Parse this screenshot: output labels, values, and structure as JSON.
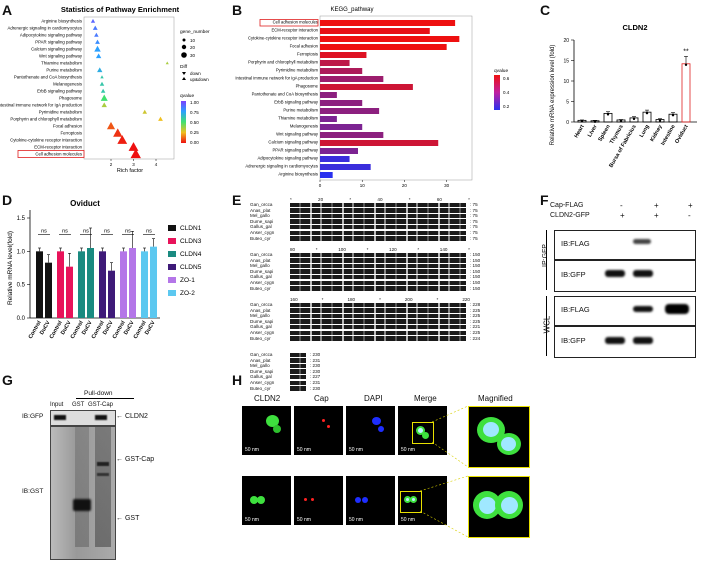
{
  "panels": {
    "A": "A",
    "B": "B",
    "C": "C",
    "D": "D",
    "E": "E",
    "F": "F",
    "G": "G",
    "H": "H"
  },
  "panelA": {
    "title": "Statistics of Pathway Enrichment",
    "xlabel": "Rich factor",
    "pathways": [
      "Arginine biosynthesis",
      "Adrenergic signaling in cardiomyocytes",
      "Adipocytokine signaling pathway",
      "PPAR signaling pathway",
      "Calcium signaling pathway",
      "Wnt signaling pathway",
      "Thiamine metabolism",
      "Purine metabolism",
      "Pantothenate and CoA biosynthesis",
      "Melanogenesis",
      "ErbB signaling pathway",
      "Phagosome",
      "Intestinal immune network for IgA production",
      "Pyrimidine metabolism",
      "Porphyrin and chlorophyll metabolism",
      "Focal adhesion",
      "Ferroptosis",
      "Cytokine-cytokine receptor interaction",
      "ECM-receptor interaction",
      "Cell adhesion molecules"
    ],
    "xticks": [
      "2",
      "3",
      "4"
    ],
    "legend_gene": "gene_number",
    "gene_sizes": [
      "10",
      "20",
      "30"
    ],
    "legend_diff": "Diff",
    "diff_items": [
      "down",
      "up&down"
    ],
    "legend_q": "qvalue",
    "q_ticks": [
      "1.00",
      "0.75",
      "0.50",
      "0.25",
      "0.00"
    ]
  },
  "panelB": {
    "title": "KEGG_pathway",
    "pathways": [
      "Cell adhesion molecules",
      "ECM-receptor interaction",
      "Cytokine-cytokine receptor interaction",
      "Focal adhesion",
      "Ferroptosis",
      "Porphyrin and chlorophyll metabolism",
      "Pyrimidine metabolism",
      "Intestinal immune network for IgA production",
      "Phagosome",
      "Pantothenate and CoA biosynthesis",
      "ErbB signaling pathway",
      "Purine metabolism",
      "Thiamine metabolism",
      "Melanogenesis",
      "Wnt signaling pathway",
      "Calcium signaling pathway",
      "PPAR signaling pathway",
      "Adipocytokine signaling pathway",
      "Adrenergic signaling in cardiomyocytes",
      "Arginine biosynthesis"
    ],
    "xticks": [
      "0",
      "10",
      "20",
      "30"
    ],
    "legend": "qvalue",
    "q_ticks": [
      "0.6",
      "0.4",
      "0.2"
    ]
  },
  "panelC": {
    "title": "CLDN2",
    "ylabel": "Relative mRNA expression level (fold)",
    "star": "**",
    "yticks": [
      "0",
      "5",
      "10",
      "15",
      "20"
    ]
  },
  "panelD": {
    "title": "Oviduct",
    "ylabel": "Relative mRNA level(fold)",
    "yticks": [
      "0.0",
      "0.5",
      "1.0",
      "1.5"
    ],
    "ns": "ns",
    "xlabels": [
      "Control",
      "DuCV"
    ]
  },
  "panelE": {
    "species": [
      "Gan_orcca",
      "Anas_plat",
      "Mel_gallo",
      "Dume_sapi",
      "Gallus_gal",
      "Anser_cygn",
      "Buteo_cyr"
    ],
    "block1_ends": [
      ": 75",
      ": 75",
      ": 75",
      ": 75",
      ": 75",
      ": 75",
      ": 75"
    ],
    "block2_ends": [
      ": 150",
      ": 150",
      ": 150",
      ": 150",
      ": 150",
      ": 150",
      ": 150"
    ],
    "block3_ends": [
      ": 228",
      ": 225",
      ": 225",
      ": 225",
      ": 221",
      ": 225",
      ": 224"
    ],
    "block4_ends": [
      ": 230",
      ": 231",
      ": 230",
      ": 230",
      ": 227",
      ": 231",
      ": 230"
    ],
    "ruler1": [
      "*",
      "20",
      "*",
      "40",
      "*",
      "60",
      "*"
    ],
    "ruler2": [
      "80",
      "*",
      "100",
      "*",
      "120",
      "*",
      "140",
      "*"
    ],
    "ruler3": [
      "160",
      "*",
      "180",
      "*",
      "200",
      "*",
      "220"
    ]
  },
  "panelF": {
    "row1_label": "Cap-FLAG",
    "row2_label": "CLDN2-GFP",
    "row1_signs": [
      "-",
      "+",
      "+"
    ],
    "row2_signs": [
      "+",
      "+",
      "-"
    ],
    "blots": [
      "IB:FLAG",
      "IB:GFP",
      "IB:FLAG",
      "IB:GFP"
    ],
    "group1": "IP:GFP",
    "group2": "WCL"
  },
  "panelG": {
    "header": "Pull-down",
    "lanes": [
      "Input",
      "GST",
      "GST-Cap"
    ],
    "blot1": "IB:GFP",
    "blot2": "IB:GST",
    "band1": "CLDN2",
    "band2": "GST-Cap",
    "band3": "GST"
  },
  "panelH": {
    "columns": [
      "CLDN2",
      "Cap",
      "DAPI",
      "Merge",
      "Magnified"
    ],
    "scale": "50 nm"
  },
  "chart_data": [
    {
      "type": "scatter",
      "title": "Statistics of Pathway Enrichment",
      "xlabel": "Rich factor",
      "ylabel": "",
      "categories": [
        "Arginine biosynthesis",
        "Adrenergic signaling in cardiomyocytes",
        "Adipocytokine signaling pathway",
        "PPAR signaling pathway",
        "Calcium signaling pathway",
        "Wnt signaling pathway",
        "Thiamine metabolism",
        "Purine metabolism",
        "Pantothenate and CoA biosynthesis",
        "Melanogenesis",
        "ErbB signaling pathway",
        "Phagosome",
        "Intestinal immune network for IgA production",
        "Pyrimidine metabolism",
        "Porphyrin and chlorophyll metabolism",
        "Focal adhesion",
        "Ferroptosis",
        "Cytokine-cytokine receptor interaction",
        "ECM-receptor interaction",
        "Cell adhesion molecules"
      ],
      "x": [
        1.2,
        1.3,
        1.35,
        1.4,
        1.4,
        1.45,
        4.5,
        1.5,
        1.6,
        1.6,
        1.65,
        1.7,
        1.7,
        3.5,
        4.2,
        2.0,
        2.3,
        2.5,
        3.0,
        3.1
      ],
      "size": [
        8,
        10,
        9,
        10,
        16,
        12,
        4,
        12,
        5,
        9,
        9,
        18,
        12,
        9,
        10,
        22,
        26,
        28,
        28,
        30
      ],
      "qvalue": [
        0.9,
        0.85,
        0.85,
        0.8,
        0.75,
        0.75,
        0.35,
        0.7,
        0.6,
        0.6,
        0.6,
        0.5,
        0.35,
        0.3,
        0.25,
        0.1,
        0.05,
        0.02,
        0.0,
        0.0
      ],
      "xlim": [
        0.8,
        4.8
      ]
    },
    {
      "type": "bar",
      "title": "KEGG_pathway",
      "categories": [
        "Cell adhesion molecules",
        "ECM-receptor interaction",
        "Cytokine-cytokine receptor interaction",
        "Focal adhesion",
        "Ferroptosis",
        "Porphyrin and chlorophyll metabolism",
        "Pyrimidine metabolism",
        "Intestinal immune network for IgA production",
        "Phagosome",
        "Pantothenate and CoA biosynthesis",
        "ErbB signaling pathway",
        "Purine metabolism",
        "Thiamine metabolism",
        "Melanogenesis",
        "Wnt signaling pathway",
        "Calcium signaling pathway",
        "PPAR signaling pathway",
        "Adipocytokine signaling pathway",
        "Adrenergic signaling in cardiomyocytes",
        "Arginine biosynthesis"
      ],
      "values": [
        32,
        26,
        33,
        30,
        11,
        7,
        10,
        15,
        22,
        4,
        10,
        14,
        4,
        10,
        15,
        28,
        9,
        7,
        12,
        3
      ],
      "qvalue": [
        0.0,
        0.02,
        0.0,
        0.0,
        0.05,
        0.15,
        0.2,
        0.25,
        0.1,
        0.3,
        0.3,
        0.3,
        0.35,
        0.35,
        0.3,
        0.1,
        0.35,
        0.55,
        0.55,
        0.6
      ],
      "xlim": [
        0,
        36
      ]
    },
    {
      "type": "bar",
      "title": "CLDN2",
      "ylabel": "Relative mRNA expression level (fold)",
      "categories": [
        "Heart",
        "Liver",
        "Spleen",
        "Thymus",
        "Bursa of Fabricius",
        "Lung",
        "Kidney",
        "Intestine",
        "Oviduct"
      ],
      "values": [
        0.4,
        0.3,
        2.1,
        0.5,
        1.0,
        2.4,
        0.6,
        1.9,
        14.2
      ],
      "errors": [
        0.1,
        0.1,
        0.4,
        0.1,
        0.3,
        0.5,
        0.2,
        0.4,
        1.8
      ],
      "ylim": [
        0,
        20
      ]
    },
    {
      "type": "bar",
      "title": "Oviduct",
      "ylabel": "Relative mRNA level(fold)",
      "categories": [
        "Control",
        "DuCV"
      ],
      "series": [
        {
          "name": "CLDN1",
          "values": [
            1.0,
            0.83
          ],
          "errors": [
            0.05,
            0.12
          ]
        },
        {
          "name": "CLDN3",
          "values": [
            1.0,
            0.77
          ],
          "errors": [
            0.05,
            0.2
          ]
        },
        {
          "name": "CLDN4",
          "values": [
            1.0,
            1.05
          ],
          "errors": [
            0.05,
            0.3
          ]
        },
        {
          "name": "CLDN5",
          "values": [
            1.0,
            0.71
          ],
          "errors": [
            0.05,
            0.12
          ]
        },
        {
          "name": "ZO-1",
          "values": [
            1.0,
            1.05
          ],
          "errors": [
            0.05,
            0.25
          ]
        },
        {
          "name": "ZO-2",
          "values": [
            1.0,
            1.07
          ],
          "errors": [
            0.05,
            0.12
          ]
        }
      ],
      "colors": [
        "#111111",
        "#e8135a",
        "#1a8a80",
        "#3e1a78",
        "#b476e8",
        "#5cc8f0"
      ],
      "ylim": [
        0,
        1.5
      ]
    }
  ]
}
